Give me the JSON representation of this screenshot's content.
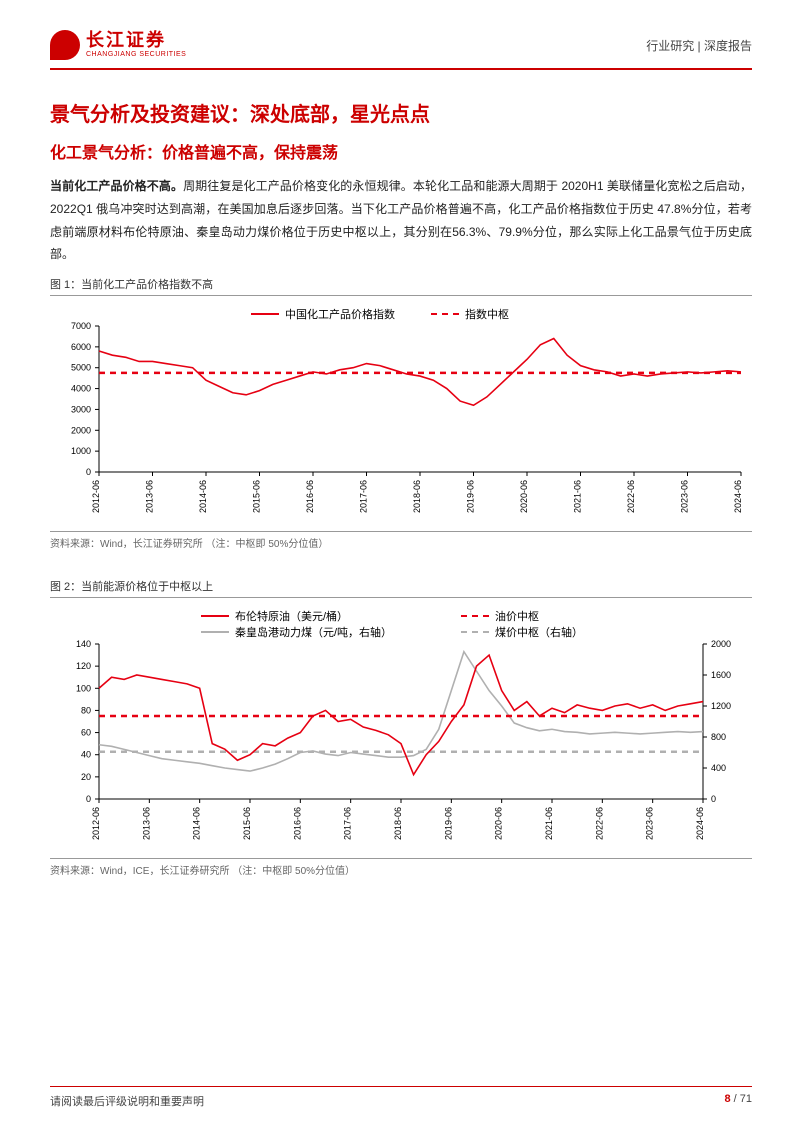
{
  "header": {
    "brand_cn": "长江证券",
    "brand_en": "CHANGJIANG SECURITIES",
    "category": "行业研究  |  深度报告"
  },
  "title_h1": "景气分析及投资建议：深处底部，星光点点",
  "title_h2": "化工景气分析：价格普遍不高，保持震荡",
  "para_bold": "当前化工产品价格不高。",
  "para_rest": "周期往复是化工产品价格变化的永恒规律。本轮化工品和能源大周期于 2020H1 美联储量化宽松之后启动，2022Q1 俄乌冲突时达到高潮，在美国加息后逐步回落。当下化工产品价格普遍不高，化工产品价格指数位于历史 47.8%分位，若考虑前端原材料布伦特原油、秦皇岛动力煤价格位于历史中枢以上，其分别在56.3%、79.9%分位，那么实际上化工品景气位于历史底部。",
  "fig1": {
    "title": "图 1：当前化工产品价格指数不高",
    "source": "资料来源：Wind，长江证券研究所    （注：中枢即 50%分位值）",
    "type": "line",
    "legend": [
      {
        "label": "中国化工产品价格指数",
        "color": "#e60012",
        "dash": "none"
      },
      {
        "label": "指数中枢",
        "color": "#e60012",
        "dash": "6,5"
      }
    ],
    "x_labels": [
      "2012-06",
      "2013-06",
      "2014-06",
      "2015-06",
      "2016-06",
      "2017-06",
      "2018-06",
      "2019-06",
      "2020-06",
      "2021-06",
      "2022-06",
      "2023-06",
      "2024-06"
    ],
    "y_ticks": [
      0,
      1000,
      2000,
      3000,
      4000,
      5000,
      6000,
      7000
    ],
    "ylim": [
      0,
      7000
    ],
    "series": {
      "index": [
        5800,
        5600,
        5500,
        5300,
        5300,
        5200,
        5100,
        5000,
        4400,
        4100,
        3800,
        3700,
        3900,
        4200,
        4400,
        4600,
        4800,
        4700,
        4900,
        5000,
        5200,
        5100,
        4900,
        4700,
        4600,
        4400,
        4000,
        3400,
        3200,
        3600,
        4200,
        4800,
        5400,
        6100,
        6400,
        5600,
        5100,
        4900,
        4800,
        4600,
        4700,
        4600,
        4700,
        4750,
        4800,
        4750,
        4800,
        4850,
        4800
      ],
      "center": 4750
    },
    "colors": {
      "bg": "#ffffff",
      "axis": "#000000",
      "tick_font": 9,
      "legend_font": 11
    }
  },
  "fig2": {
    "title": "图 2：当前能源价格位于中枢以上",
    "source": "资料来源：Wind，ICE，长江证券研究所    （注：中枢即 50%分位值）",
    "type": "line_dual_axis",
    "legend": [
      {
        "label": "布伦特原油（美元/桶）",
        "color": "#e60012",
        "dash": "none"
      },
      {
        "label": "油价中枢",
        "color": "#e60012",
        "dash": "6,5"
      },
      {
        "label": "秦皇岛港动力煤（元/吨，右轴）",
        "color": "#b0b0b0",
        "dash": "none"
      },
      {
        "label": "煤价中枢（右轴）",
        "color": "#b0b0b0",
        "dash": "6,5"
      }
    ],
    "x_labels": [
      "2012-06",
      "2013-06",
      "2014-06",
      "2015-06",
      "2016-06",
      "2017-06",
      "2018-06",
      "2019-06",
      "2020-06",
      "2021-06",
      "2022-06",
      "2023-06",
      "2024-06"
    ],
    "y_left_ticks": [
      0,
      20,
      40,
      60,
      80,
      100,
      120,
      140
    ],
    "y_left_lim": [
      0,
      140
    ],
    "y_right_ticks": [
      0,
      400,
      800,
      1200,
      1600,
      2000
    ],
    "y_right_lim": [
      0,
      2000
    ],
    "series": {
      "brent": [
        100,
        110,
        108,
        112,
        110,
        108,
        106,
        104,
        100,
        50,
        45,
        35,
        40,
        50,
        48,
        55,
        60,
        75,
        80,
        70,
        72,
        65,
        62,
        58,
        50,
        22,
        40,
        52,
        70,
        85,
        120,
        130,
        98,
        80,
        88,
        75,
        82,
        78,
        85,
        82,
        80,
        84,
        86,
        82,
        85,
        80,
        84,
        86,
        88
      ],
      "brent_center": 75,
      "coal": [
        700,
        680,
        640,
        600,
        560,
        520,
        500,
        480,
        460,
        430,
        400,
        380,
        360,
        400,
        450,
        520,
        600,
        620,
        580,
        560,
        600,
        580,
        560,
        540,
        540,
        560,
        640,
        900,
        1400,
        1900,
        1650,
        1400,
        1200,
        980,
        920,
        880,
        900,
        870,
        860,
        840,
        850,
        860,
        850,
        840,
        850,
        860,
        870,
        860,
        870
      ],
      "coal_center": 610
    },
    "colors": {
      "bg": "#ffffff",
      "axis": "#000000",
      "tick_font": 9,
      "legend_font": 11
    }
  },
  "footer": {
    "disclaimer": "请阅读最后评级说明和重要声明",
    "page_current": "8",
    "page_sep": " / ",
    "page_total": "71"
  }
}
